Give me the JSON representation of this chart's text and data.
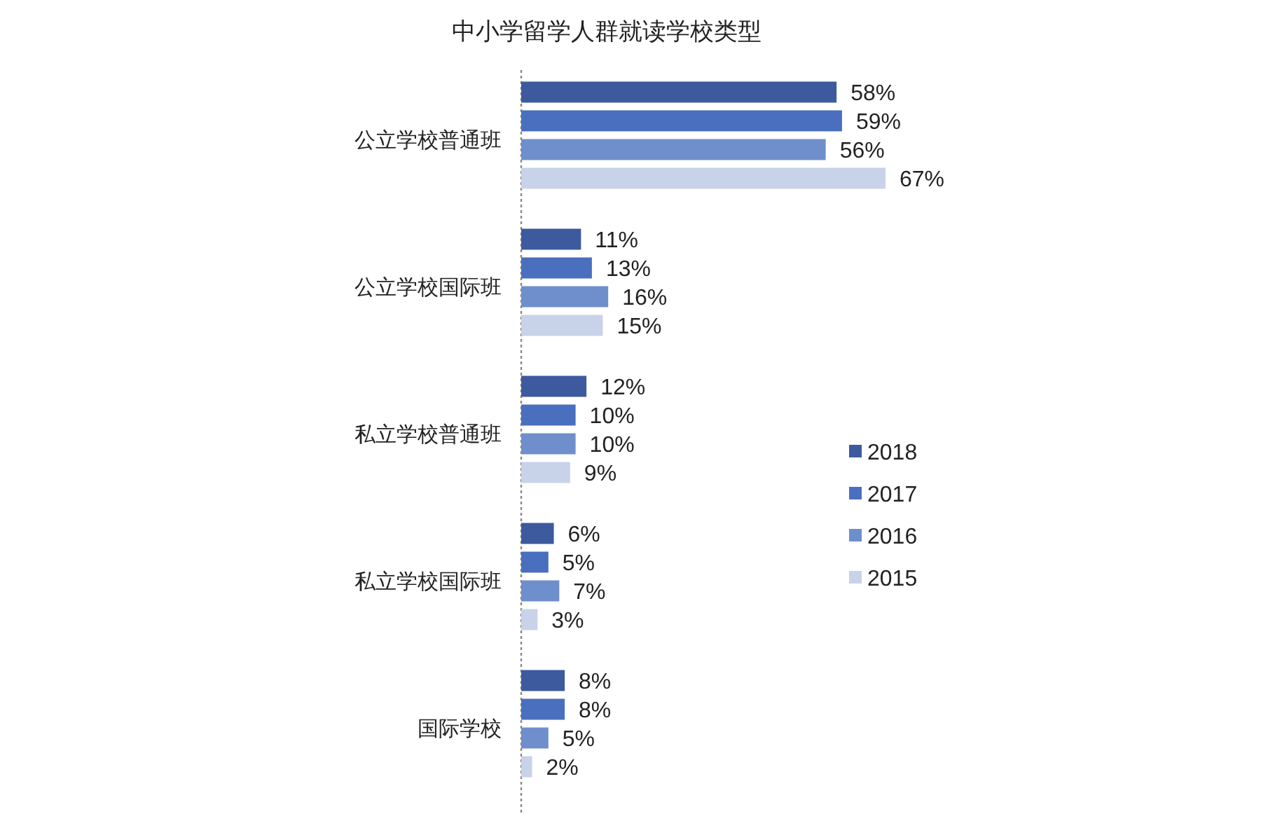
{
  "chart_data": {
    "type": "bar",
    "title": "中小学留学人群就读学校类型",
    "orientation": "horizontal",
    "tick_labels": "y",
    "legend": "right",
    "categories": [
      "公立学校普通班",
      "公立学校国际班",
      "私立学校普通班",
      "私立学校国际班",
      "国际学校"
    ],
    "series": [
      {
        "name": "2018",
        "color": "#3d5a9e",
        "values": [
          58,
          11,
          12,
          6,
          8
        ],
        "value_labels": [
          "58%",
          "11%",
          "12%",
          "6%",
          "8%"
        ]
      },
      {
        "name": "2017",
        "color": "#4a6fbf",
        "values": [
          59,
          13,
          10,
          5,
          8
        ],
        "value_labels": [
          "59%",
          "13%",
          "10%",
          "5%",
          "8%"
        ]
      },
      {
        "name": "2016",
        "color": "#6f8fcc",
        "values": [
          56,
          16,
          10,
          7,
          5
        ],
        "value_labels": [
          "56%",
          "16%",
          "10%",
          "7%",
          "5%"
        ]
      },
      {
        "name": "2015",
        "color": "#c8d2e8",
        "values": [
          67,
          15,
          9,
          3,
          2
        ],
        "value_labels": [
          "67%",
          "15%",
          "9%",
          "3%",
          "2%"
        ]
      }
    ]
  }
}
